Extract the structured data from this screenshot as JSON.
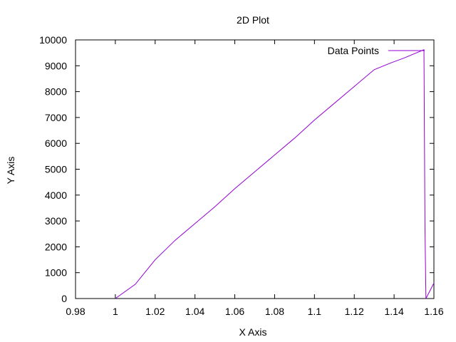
{
  "chart_data": {
    "type": "line",
    "title": "2D Plot",
    "xlabel": "X Axis",
    "ylabel": "Y Axis",
    "xlim": [
      0.98,
      1.16
    ],
    "ylim": [
      0,
      10000
    ],
    "x_ticks": [
      "0.98",
      "1",
      "1.02",
      "1.04",
      "1.06",
      "1.08",
      "1.1",
      "1.12",
      "1.14",
      "1.16"
    ],
    "x_tick_values": [
      0.98,
      1.0,
      1.02,
      1.04,
      1.06,
      1.08,
      1.1,
      1.12,
      1.14,
      1.16
    ],
    "y_ticks": [
      "0",
      "1000",
      "2000",
      "3000",
      "4000",
      "5000",
      "6000",
      "7000",
      "8000",
      "9000",
      "10000"
    ],
    "y_tick_values": [
      0,
      1000,
      2000,
      3000,
      4000,
      5000,
      6000,
      7000,
      8000,
      9000,
      10000
    ],
    "grid": false,
    "legend_position": "top-right",
    "series": [
      {
        "name": "Data Points",
        "color": "#9400d3",
        "x": [
          1.0,
          1.01,
          1.02,
          1.03,
          1.04,
          1.05,
          1.06,
          1.07,
          1.08,
          1.09,
          1.1,
          1.11,
          1.12,
          1.13,
          1.138,
          1.145,
          1.155,
          1.1555,
          1.156,
          1.16
        ],
        "y": [
          0,
          550,
          1500,
          2250,
          2900,
          3550,
          4250,
          4900,
          5550,
          6200,
          6900,
          7550,
          8200,
          8850,
          9100,
          9300,
          9620,
          2800,
          0,
          600
        ]
      }
    ]
  }
}
